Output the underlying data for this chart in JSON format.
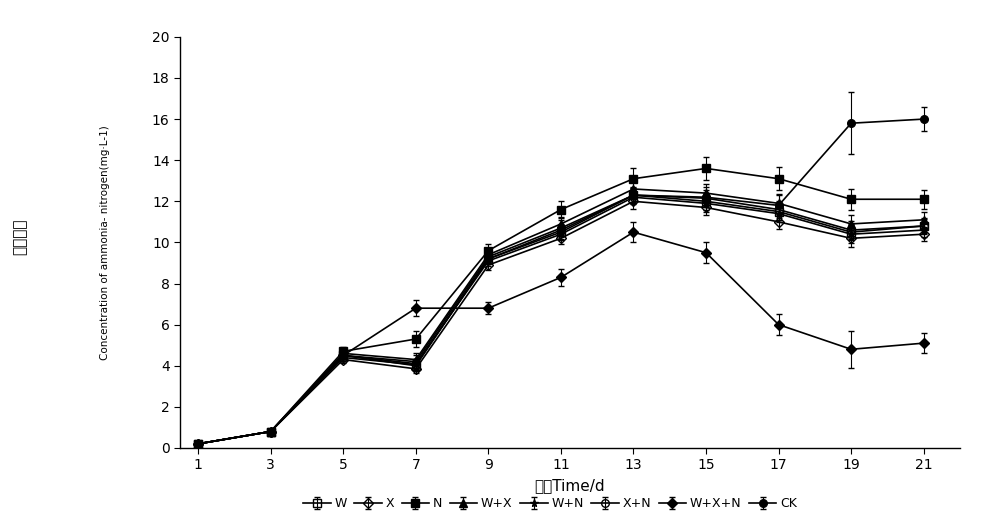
{
  "x": [
    1,
    3,
    5,
    7,
    9,
    11,
    13,
    15,
    17,
    19,
    21
  ],
  "series": {
    "W": {
      "y": [
        0.2,
        0.8,
        4.5,
        4.0,
        9.2,
        10.5,
        12.3,
        12.0,
        11.5,
        10.5,
        10.8
      ],
      "yerr": [
        0.05,
        0.05,
        0.15,
        0.25,
        0.25,
        0.35,
        0.35,
        0.4,
        0.4,
        0.4,
        0.35
      ]
    },
    "X": {
      "y": [
        0.2,
        0.8,
        4.3,
        3.85,
        8.9,
        10.2,
        12.0,
        11.7,
        11.0,
        10.2,
        10.4
      ],
      "yerr": [
        0.05,
        0.05,
        0.15,
        0.2,
        0.25,
        0.3,
        0.35,
        0.35,
        0.35,
        0.4,
        0.35
      ]
    },
    "N": {
      "y": [
        0.2,
        0.8,
        4.7,
        5.3,
        9.6,
        11.6,
        13.1,
        13.6,
        13.1,
        12.1,
        12.1
      ],
      "yerr": [
        0.05,
        0.05,
        0.2,
        0.4,
        0.3,
        0.4,
        0.5,
        0.55,
        0.55,
        0.5,
        0.45
      ]
    },
    "W+X": {
      "y": [
        0.2,
        0.8,
        4.6,
        4.3,
        9.4,
        10.9,
        12.6,
        12.4,
        11.9,
        10.9,
        11.1
      ],
      "yerr": [
        0.05,
        0.05,
        0.15,
        0.3,
        0.25,
        0.35,
        0.4,
        0.45,
        0.45,
        0.45,
        0.4
      ]
    },
    "W+N": {
      "y": [
        0.2,
        0.8,
        4.5,
        4.1,
        9.1,
        10.4,
        12.2,
        11.9,
        11.4,
        10.4,
        10.6
      ],
      "yerr": [
        0.05,
        0.05,
        0.15,
        0.25,
        0.25,
        0.3,
        0.35,
        0.4,
        0.4,
        0.45,
        0.35
      ]
    },
    "X+N": {
      "y": [
        0.2,
        0.8,
        4.4,
        4.05,
        9.2,
        10.6,
        12.3,
        12.15,
        11.6,
        10.6,
        10.8
      ],
      "yerr": [
        0.05,
        0.05,
        0.15,
        0.2,
        0.25,
        0.3,
        0.35,
        0.4,
        0.4,
        0.45,
        0.38
      ]
    },
    "W+X+N": {
      "y": [
        0.2,
        0.8,
        4.5,
        6.8,
        6.8,
        8.3,
        10.5,
        9.5,
        6.0,
        4.8,
        5.1
      ],
      "yerr": [
        0.05,
        0.05,
        0.15,
        0.4,
        0.3,
        0.4,
        0.5,
        0.5,
        0.5,
        0.9,
        0.5
      ]
    },
    "CK": {
      "y": [
        0.2,
        0.8,
        4.5,
        4.2,
        9.3,
        10.7,
        12.3,
        12.2,
        11.8,
        15.8,
        16.0
      ],
      "yerr": [
        0.05,
        0.05,
        0.15,
        0.3,
        0.3,
        0.38,
        0.4,
        0.5,
        0.5,
        1.5,
        0.6
      ]
    }
  },
  "markers": {
    "W": {
      "marker": "s",
      "filled": false
    },
    "X": {
      "marker": "D",
      "filled": false
    },
    "N": {
      "marker": "s",
      "filled": true
    },
    "W+X": {
      "marker": "^",
      "filled": true
    },
    "W+N": {
      "marker": "*",
      "filled": true
    },
    "X+N": {
      "marker": "o",
      "filled": false
    },
    "W+X+N": {
      "marker": "D",
      "filled": true
    },
    "CK": {
      "marker": "o",
      "filled": true
    }
  },
  "xlabel": "时间Time/d",
  "ylabel_cn": "氨氮浓度",
  "ylabel_en": "Concentration of ammonia- nitrogen(mg·L-1)",
  "xlim": [
    0.5,
    22
  ],
  "ylim": [
    0,
    20
  ],
  "yticks": [
    0,
    2,
    4,
    6,
    8,
    10,
    12,
    14,
    16,
    18,
    20
  ],
  "xticks": [
    1,
    3,
    5,
    7,
    9,
    11,
    13,
    15,
    17,
    19,
    21
  ],
  "color": "#000000",
  "linewidth": 1.2,
  "markersize": 5.5
}
